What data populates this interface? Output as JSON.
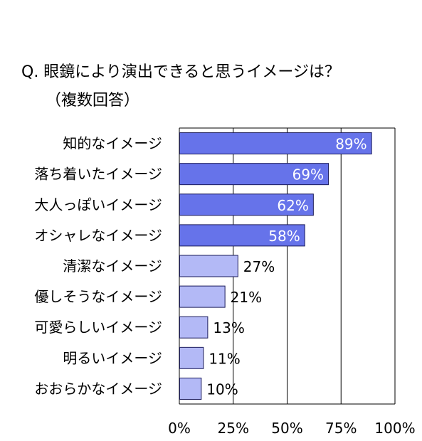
{
  "chart_data": {
    "type": "bar",
    "orientation": "horizontal",
    "title": "Q. 眼鏡により演出できると思うイメージは？",
    "subtitle": "（複数回答）",
    "categories": [
      "知的なイメージ",
      "落ち着いたイメージ",
      "大人っぽいイメージ",
      "オシャレなイメージ",
      "清潔なイメージ",
      "優しそうなイメージ",
      "可愛らしいイメージ",
      "明るいイメージ",
      "おおらかなイメージ"
    ],
    "values": [
      89,
      69,
      62,
      58,
      27,
      21,
      13,
      11,
      10
    ],
    "value_labels": [
      "89%",
      "69%",
      "62%",
      "58%",
      "27%",
      "21%",
      "13%",
      "11%",
      "10%"
    ],
    "xlim": [
      0,
      100
    ],
    "xticks": [
      "0%",
      "25%",
      "50%",
      "75%",
      "100%"
    ],
    "grid": "vertical",
    "colors": {
      "dark_bar": "#6673ea",
      "light_bar": "#b3b9f6",
      "bar_edge": "#1a1a5a",
      "grid": "#000000"
    },
    "value_label_colors": [
      "#ffffff",
      "#ffffff",
      "#ffffff",
      "#ffffff",
      "#000000",
      "#000000",
      "#000000",
      "#000000",
      "#000000"
    ]
  }
}
